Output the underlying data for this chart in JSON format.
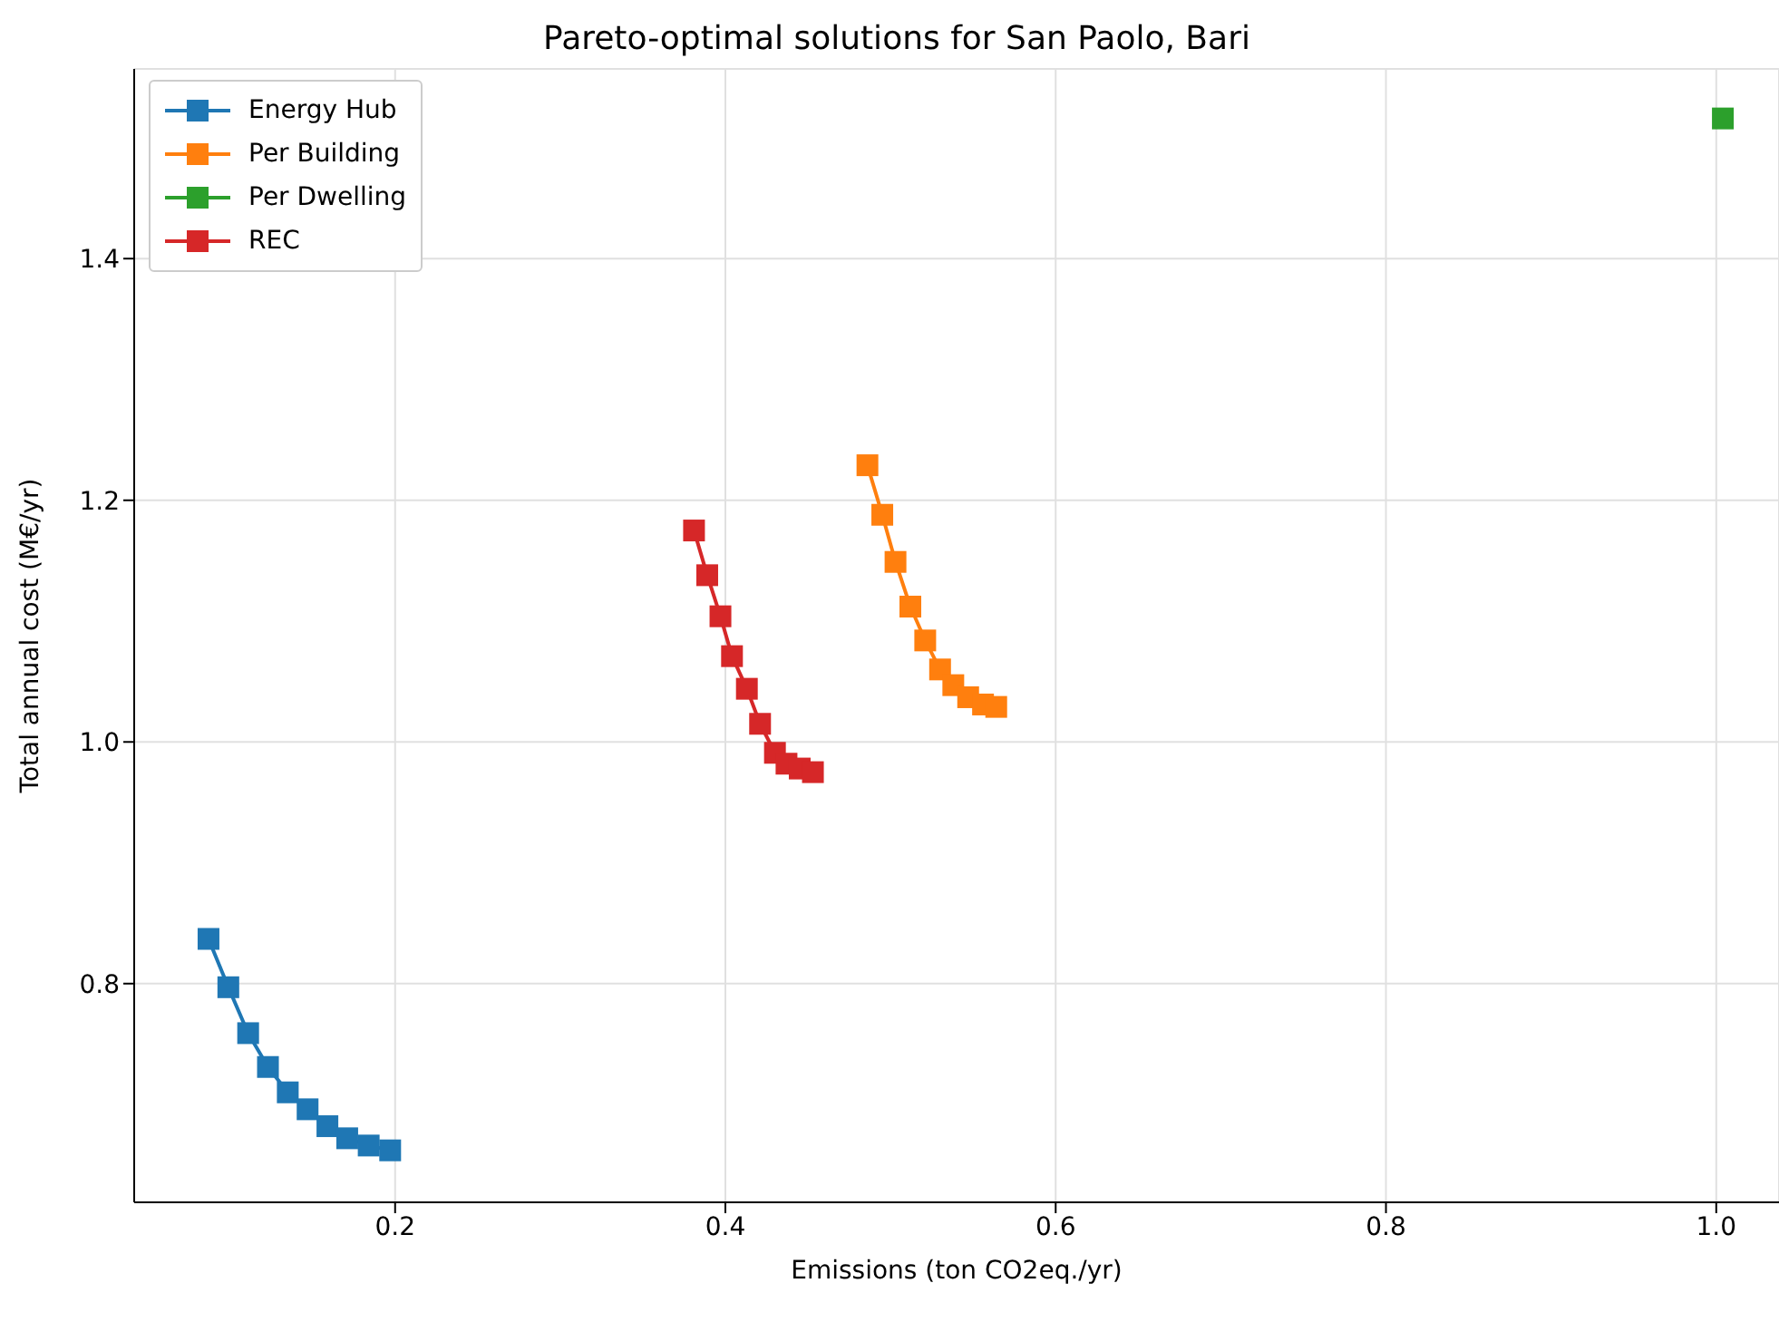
{
  "chart_data": {
    "type": "line",
    "title": "Pareto-optimal solutions for San Paolo, Bari",
    "xlabel": "Emissions (ton CO2eq./yr)",
    "ylabel": "Total annual cost (M€/yr)",
    "xlim": [
      0.042,
      1.038
    ],
    "ylim": [
      0.619,
      1.557
    ],
    "xticks": [
      0.2,
      0.4,
      0.6,
      0.8,
      {
        "value": 1.0,
        "label": "1.0"
      }
    ],
    "yticks": [
      0.8,
      {
        "value": 1.0,
        "label": "1.0"
      },
      1.2,
      1.4
    ],
    "grid": true,
    "legend": "top left",
    "marker": "square",
    "line_style": "solid",
    "series": [
      {
        "name": "Energy Hub",
        "color": "#1f77b4",
        "x": [
          0.087,
          0.099,
          0.111,
          0.123,
          0.135,
          0.147,
          0.159,
          0.171,
          0.184,
          0.197
        ],
        "values": [
          0.837,
          0.797,
          0.759,
          0.731,
          0.71,
          0.696,
          0.682,
          0.672,
          0.666,
          0.662
        ]
      },
      {
        "name": "Per Building",
        "color": "#ff7f0e",
        "x": [
          0.486,
          0.495,
          0.503,
          0.512,
          0.521,
          0.53,
          0.538,
          0.547,
          0.556,
          0.564
        ],
        "values": [
          1.229,
          1.188,
          1.149,
          1.112,
          1.084,
          1.06,
          1.047,
          1.037,
          1.031,
          1.029
        ]
      },
      {
        "name": "Per Dwelling",
        "color": "#2ca02c",
        "x": [
          1.004
        ],
        "values": [
          1.516
        ]
      },
      {
        "name": "REC",
        "color": "#d62728",
        "x": [
          0.381,
          0.389,
          0.397,
          0.404,
          0.413,
          0.421,
          0.43,
          0.437,
          0.445,
          0.453
        ],
        "values": [
          1.175,
          1.138,
          1.104,
          1.071,
          1.044,
          1.015,
          0.991,
          0.982,
          0.978,
          0.975
        ]
      }
    ]
  }
}
